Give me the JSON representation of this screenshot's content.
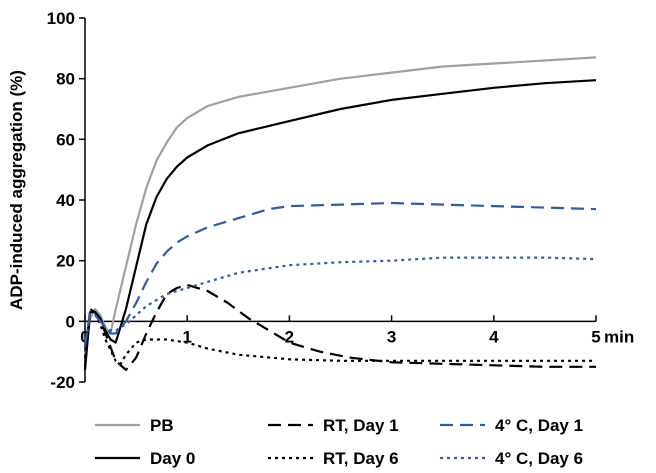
{
  "chart_data": {
    "type": "line",
    "title": "",
    "ylabel": "ADP-induced aggregation (%)",
    "xlabel": "",
    "x_unit_label": "min",
    "xlim": [
      0,
      5
    ],
    "ylim": [
      -20,
      100
    ],
    "x_ticks": [
      "0",
      "1",
      "2",
      "3",
      "4",
      "5"
    ],
    "y_ticks": [
      "-20",
      "0",
      "20",
      "40",
      "60",
      "80",
      "100"
    ],
    "grid": false,
    "legend_position": "bottom",
    "series": [
      {
        "name": "PB",
        "color": "#a0a0a0",
        "dash": "solid",
        "points": [
          [
            0,
            -12
          ],
          [
            0.05,
            1
          ],
          [
            0.1,
            4
          ],
          [
            0.15,
            2
          ],
          [
            0.2,
            -2
          ],
          [
            0.25,
            -4
          ],
          [
            0.3,
            4
          ],
          [
            0.4,
            18
          ],
          [
            0.5,
            32
          ],
          [
            0.6,
            44
          ],
          [
            0.7,
            53
          ],
          [
            0.8,
            59
          ],
          [
            0.9,
            64
          ],
          [
            1.0,
            67
          ],
          [
            1.2,
            71
          ],
          [
            1.5,
            74
          ],
          [
            2.0,
            77
          ],
          [
            2.5,
            80
          ],
          [
            3.0,
            82
          ],
          [
            3.5,
            84
          ],
          [
            4.0,
            85
          ],
          [
            4.5,
            86
          ],
          [
            5.0,
            87
          ]
        ]
      },
      {
        "name": "Day 0",
        "color": "#000000",
        "dash": "solid",
        "points": [
          [
            0,
            -16
          ],
          [
            0.05,
            3
          ],
          [
            0.1,
            3
          ],
          [
            0.15,
            1
          ],
          [
            0.2,
            -3
          ],
          [
            0.25,
            -6
          ],
          [
            0.3,
            -7
          ],
          [
            0.4,
            4
          ],
          [
            0.5,
            18
          ],
          [
            0.6,
            32
          ],
          [
            0.7,
            41
          ],
          [
            0.8,
            47
          ],
          [
            0.9,
            51
          ],
          [
            1.0,
            54
          ],
          [
            1.2,
            58
          ],
          [
            1.5,
            62
          ],
          [
            2.0,
            66
          ],
          [
            2.5,
            70
          ],
          [
            3.0,
            73
          ],
          [
            3.5,
            75
          ],
          [
            4.0,
            77
          ],
          [
            4.5,
            78.5
          ],
          [
            5.0,
            79.5
          ]
        ]
      },
      {
        "name": "RT, Day 1",
        "color": "#000000",
        "dash": "long",
        "points": [
          [
            0,
            -15
          ],
          [
            0.05,
            4
          ],
          [
            0.1,
            3
          ],
          [
            0.15,
            1
          ],
          [
            0.2,
            -4
          ],
          [
            0.3,
            -13
          ],
          [
            0.4,
            -16
          ],
          [
            0.5,
            -12
          ],
          [
            0.6,
            -4
          ],
          [
            0.7,
            3
          ],
          [
            0.8,
            9
          ],
          [
            0.9,
            11
          ],
          [
            1.0,
            12
          ],
          [
            1.1,
            11
          ],
          [
            1.2,
            10
          ],
          [
            1.4,
            6
          ],
          [
            1.6,
            1
          ],
          [
            1.8,
            -3
          ],
          [
            2.0,
            -7
          ],
          [
            2.3,
            -10
          ],
          [
            2.6,
            -12
          ],
          [
            3.0,
            -13.5
          ],
          [
            3.5,
            -14
          ],
          [
            4.0,
            -14.5
          ],
          [
            4.5,
            -15
          ],
          [
            5.0,
            -15
          ]
        ]
      },
      {
        "name": "RT, Day 6",
        "color": "#000000",
        "dash": "short",
        "points": [
          [
            0,
            -12
          ],
          [
            0.05,
            4
          ],
          [
            0.1,
            3
          ],
          [
            0.15,
            -1
          ],
          [
            0.2,
            -6
          ],
          [
            0.3,
            -13
          ],
          [
            0.35,
            -14
          ],
          [
            0.4,
            -11
          ],
          [
            0.5,
            -7
          ],
          [
            0.6,
            -6
          ],
          [
            0.7,
            -6
          ],
          [
            0.8,
            -6
          ],
          [
            0.9,
            -6.5
          ],
          [
            1.0,
            -7
          ],
          [
            1.2,
            -9
          ],
          [
            1.5,
            -11
          ],
          [
            2.0,
            -12.5
          ],
          [
            2.5,
            -13
          ],
          [
            3.0,
            -13
          ],
          [
            4.0,
            -13
          ],
          [
            5.0,
            -13
          ]
        ]
      },
      {
        "name": "4° C, Day 1",
        "color": "#2a5cb0",
        "dash": "long",
        "points": [
          [
            0,
            -8
          ],
          [
            0.05,
            3
          ],
          [
            0.1,
            2
          ],
          [
            0.15,
            0
          ],
          [
            0.2,
            -2
          ],
          [
            0.25,
            -4
          ],
          [
            0.3,
            -4
          ],
          [
            0.4,
            0
          ],
          [
            0.5,
            6
          ],
          [
            0.6,
            13
          ],
          [
            0.7,
            19
          ],
          [
            0.8,
            23
          ],
          [
            0.9,
            26
          ],
          [
            1.0,
            28
          ],
          [
            1.2,
            31
          ],
          [
            1.5,
            34
          ],
          [
            1.8,
            37
          ],
          [
            2.0,
            38
          ],
          [
            2.5,
            38.5
          ],
          [
            3.0,
            39
          ],
          [
            3.5,
            38.5
          ],
          [
            4.0,
            38
          ],
          [
            4.5,
            37.5
          ],
          [
            5.0,
            37
          ]
        ]
      },
      {
        "name": "4° C, Day 6",
        "color": "#2a5cb0",
        "dash": "short",
        "points": [
          [
            0,
            -8
          ],
          [
            0.05,
            2
          ],
          [
            0.1,
            2
          ],
          [
            0.15,
            0
          ],
          [
            0.2,
            -2
          ],
          [
            0.25,
            -3
          ],
          [
            0.3,
            -3
          ],
          [
            0.4,
            -1
          ],
          [
            0.5,
            2
          ],
          [
            0.6,
            5
          ],
          [
            0.7,
            7
          ],
          [
            0.8,
            9
          ],
          [
            0.9,
            10
          ],
          [
            1.0,
            11
          ],
          [
            1.2,
            13
          ],
          [
            1.5,
            16
          ],
          [
            2.0,
            18.5
          ],
          [
            2.5,
            19.5
          ],
          [
            3.0,
            20
          ],
          [
            3.5,
            21
          ],
          [
            4.0,
            21
          ],
          [
            4.5,
            21
          ],
          [
            5.0,
            20.5
          ]
        ]
      }
    ]
  }
}
